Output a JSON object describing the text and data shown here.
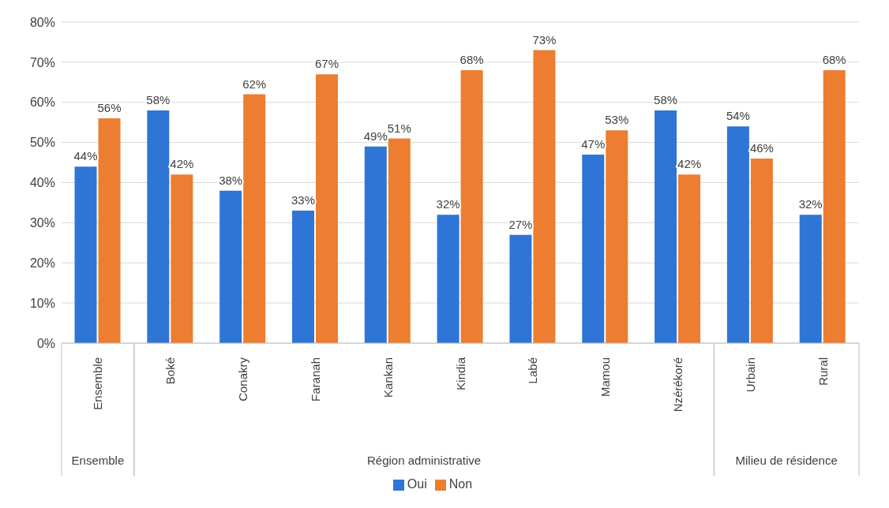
{
  "chart_data": {
    "type": "bar",
    "categories": [
      "Ensemble",
      "Boké",
      "Conakry",
      "Faranah",
      "Kankan",
      "Kindia",
      "Labé",
      "Mamou",
      "Nzérékoré",
      "Urbain",
      "Rural"
    ],
    "series": [
      {
        "name": "Oui",
        "color": "#2e75d6",
        "values": [
          44,
          58,
          38,
          33,
          49,
          32,
          27,
          47,
          58,
          54,
          32
        ],
        "value_labels": [
          "44%",
          "58%",
          "38%",
          "33%",
          "49%",
          "32%",
          "27%",
          "47%",
          "58%",
          "54%",
          "32%"
        ]
      },
      {
        "name": "Non",
        "color": "#ed7d31",
        "values": [
          56,
          42,
          62,
          67,
          51,
          68,
          73,
          53,
          42,
          46,
          68
        ],
        "value_labels": [
          "56%",
          "42%",
          "62%",
          "67%",
          "51%",
          "68%",
          "73%",
          "53%",
          "42%",
          "46%",
          "68%"
        ]
      }
    ],
    "annotations": [
      "Ensemble",
      "Région administrative",
      "Milieu de résidence"
    ],
    "ylim": [
      0,
      80
    ],
    "yticks": [
      {
        "value": 0,
        "label": "0%"
      },
      {
        "value": 10,
        "label": "10%"
      },
      {
        "value": 20,
        "label": "20%"
      },
      {
        "value": 30,
        "label": "30%"
      },
      {
        "value": 40,
        "label": "40%"
      },
      {
        "value": 50,
        "label": "50%"
      },
      {
        "value": 60,
        "label": "60%"
      },
      {
        "value": 70,
        "label": "70%"
      },
      {
        "value": 80,
        "label": "80%"
      }
    ],
    "grid": "y",
    "legend": "bottom"
  }
}
